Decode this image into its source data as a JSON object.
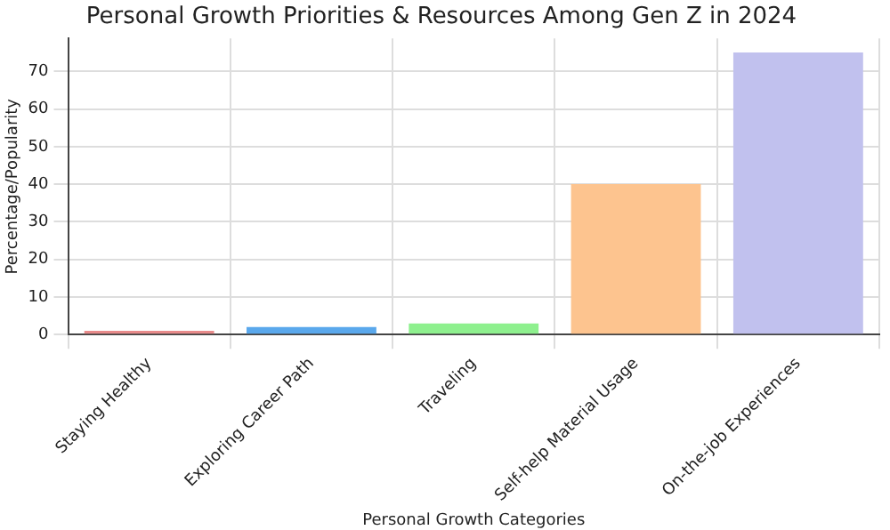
{
  "chart_data": {
    "type": "bar",
    "title": "Personal Growth Priorities & Resources Among Gen Z in 2024",
    "xlabel": "Personal Growth Categories",
    "ylabel": "Percentage/Popularity",
    "categories": [
      "Staying Healthy",
      "Exploring Career Path",
      "Traveling",
      "Self-help Material Usage",
      "On-the-job Experiences"
    ],
    "values": [
      1,
      2,
      3,
      40,
      75
    ],
    "colors": [
      "#e88b8b",
      "#5aa8ec",
      "#8ef08e",
      "#fdc48f",
      "#c1c1ee"
    ],
    "ylim": [
      0,
      78.75
    ],
    "yticks": [
      0,
      10,
      20,
      30,
      40,
      50,
      60,
      70
    ],
    "grid": true,
    "legend": false
  }
}
